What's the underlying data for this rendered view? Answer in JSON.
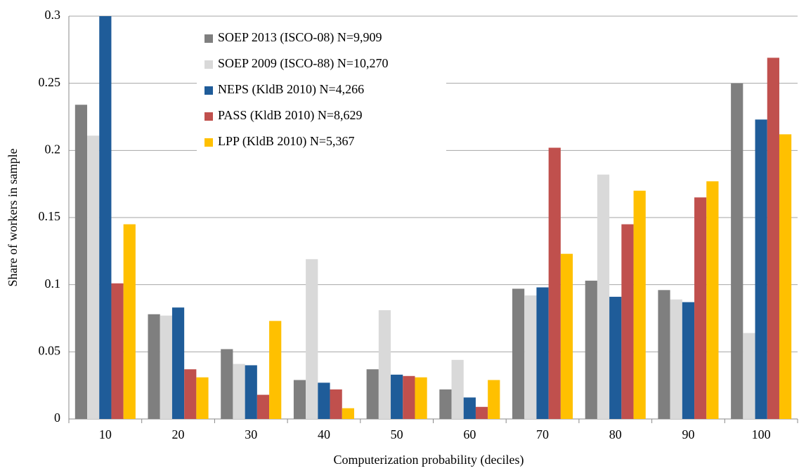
{
  "chart_data": {
    "type": "bar",
    "xlabel": "Computerization probability (deciles)",
    "ylabel": "Share of workers in sample",
    "categories": [
      "10",
      "20",
      "30",
      "40",
      "50",
      "60",
      "70",
      "80",
      "90",
      "100"
    ],
    "series": [
      {
        "name": "SOEP 2013 (ISCO-08) N=9,909",
        "color": "#7f7f7f",
        "values": [
          0.234,
          0.078,
          0.052,
          0.029,
          0.037,
          0.022,
          0.097,
          0.103,
          0.096,
          0.25
        ]
      },
      {
        "name": "SOEP 2009 (ISCO-88) N=10,270",
        "color": "#d9d9d9",
        "values": [
          0.211,
          0.077,
          0.041,
          0.119,
          0.081,
          0.044,
          0.092,
          0.182,
          0.089,
          0.064
        ]
      },
      {
        "name": "NEPS (KldB 2010) N=4,266",
        "color": "#1f5c99",
        "values": [
          0.3,
          0.083,
          0.04,
          0.027,
          0.033,
          0.016,
          0.098,
          0.091,
          0.087,
          0.223
        ]
      },
      {
        "name": "PASS  (KldB 2010) N=8,629",
        "color": "#c0504d",
        "values": [
          0.101,
          0.037,
          0.018,
          0.022,
          0.032,
          0.009,
          0.202,
          0.145,
          0.165,
          0.269
        ]
      },
      {
        "name": "LPP (KldB 2010) N=5,367",
        "color": "#ffc000",
        "values": [
          0.145,
          0.031,
          0.073,
          0.008,
          0.031,
          0.029,
          0.123,
          0.17,
          0.177,
          0.212
        ]
      }
    ],
    "ylim": [
      0,
      0.3
    ],
    "yticks": [
      0,
      0.05,
      0.1,
      0.15,
      0.2,
      0.25,
      0.3
    ],
    "grid": true,
    "legend": "top-left"
  }
}
